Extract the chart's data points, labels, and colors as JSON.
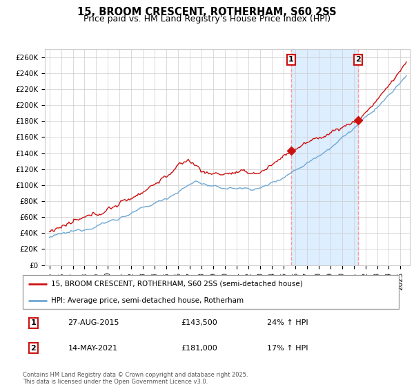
{
  "title": "15, BROOM CRESCENT, ROTHERHAM, S60 2SS",
  "subtitle": "Price paid vs. HM Land Registry's House Price Index (HPI)",
  "ylabel_ticks": [
    "£0",
    "£20K",
    "£40K",
    "£60K",
    "£80K",
    "£100K",
    "£120K",
    "£140K",
    "£160K",
    "£180K",
    "£200K",
    "£220K",
    "£240K",
    "£260K"
  ],
  "ytick_values": [
    0,
    20000,
    40000,
    60000,
    80000,
    100000,
    120000,
    140000,
    160000,
    180000,
    200000,
    220000,
    240000,
    260000
  ],
  "ylim": [
    0,
    270000
  ],
  "xlim_start": 1994.6,
  "xlim_end": 2025.8,
  "x_ticks": [
    1995,
    1996,
    1997,
    1998,
    1999,
    2000,
    2001,
    2002,
    2003,
    2004,
    2005,
    2006,
    2007,
    2008,
    2009,
    2010,
    2011,
    2012,
    2013,
    2014,
    2015,
    2016,
    2017,
    2018,
    2019,
    2020,
    2021,
    2022,
    2023,
    2024,
    2025
  ],
  "sale1_x": 2015.65,
  "sale1_y": 143500,
  "sale1_label": "1",
  "sale1_date": "27-AUG-2015",
  "sale1_price": "£143,500",
  "sale1_hpi": "24% ↑ HPI",
  "sale2_x": 2021.37,
  "sale2_y": 181000,
  "sale2_label": "2",
  "sale2_date": "14-MAY-2021",
  "sale2_price": "£181,000",
  "sale2_hpi": "17% ↑ HPI",
  "line1_color": "#cc1111",
  "line2_color": "#6fa8d4",
  "vline_color": "#ff9999",
  "shade_color": "#ddeeff",
  "grid_color": "#cccccc",
  "background_color": "#ffffff",
  "legend_line1": "15, BROOM CRESCENT, ROTHERHAM, S60 2SS (semi-detached house)",
  "legend_line2": "HPI: Average price, semi-detached house, Rotherham",
  "footer": "Contains HM Land Registry data © Crown copyright and database right 2025.\nThis data is licensed under the Open Government Licence v3.0.",
  "title_fontsize": 10.5,
  "subtitle_fontsize": 9,
  "tick_fontsize": 7.5,
  "legend_fontsize": 7.5,
  "annot_fontsize": 8
}
